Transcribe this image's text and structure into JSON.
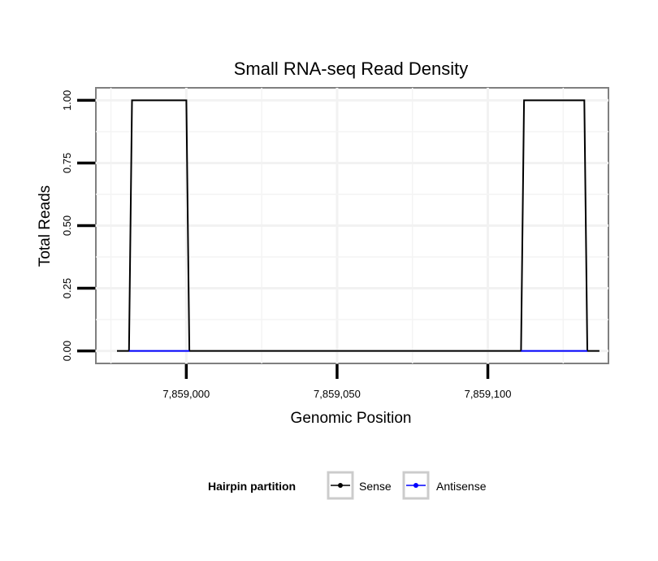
{
  "chart_data": {
    "type": "line",
    "title": "Small RNA-seq Read Density",
    "xlabel": "Genomic Position",
    "ylabel": "Total Reads",
    "xlim": [
      7858970,
      7859140
    ],
    "ylim": [
      -0.05,
      1.05
    ],
    "x_ticks": [
      7859000,
      7859050,
      7859100
    ],
    "x_tick_labels": [
      "7,859,000",
      "7,859,050",
      "7,859,100"
    ],
    "y_ticks": [
      0,
      0.25,
      0.5,
      0.75,
      1.0
    ],
    "y_tick_labels": [
      "0.00",
      "0.25",
      "0.50",
      "0.75",
      "1.00"
    ],
    "grid": true,
    "legend": {
      "title": "Hairpin partition",
      "position": "bottom",
      "entries": [
        {
          "name": "Sense",
          "color": "#000000"
        },
        {
          "name": "Antisense",
          "color": "#0000ff"
        }
      ]
    },
    "series": [
      {
        "name": "Sense",
        "color": "#000000",
        "x": [
          7858977,
          7858981,
          7858982,
          7859000,
          7859001,
          7859111,
          7859112,
          7859132,
          7859133,
          7859137
        ],
        "y": [
          0,
          0,
          1,
          1,
          0,
          0,
          1,
          1,
          0,
          0
        ]
      },
      {
        "name": "Antisense",
        "color": "#0000ff",
        "x": [
          7858981,
          7859001
        ],
        "y": [
          0,
          0
        ]
      },
      {
        "name": "Antisense",
        "color": "#0000ff",
        "x": [
          7859111,
          7859133
        ],
        "y": [
          0,
          0
        ]
      }
    ]
  }
}
